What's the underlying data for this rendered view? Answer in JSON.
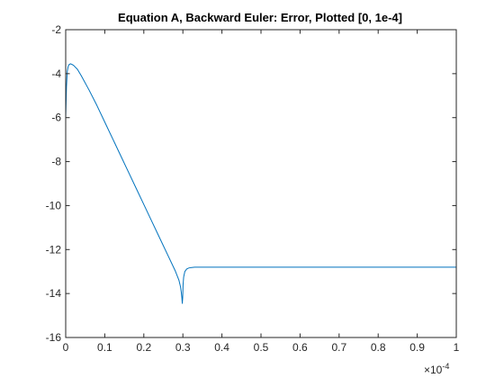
{
  "chart_data": {
    "type": "line",
    "title": "Equation A, Backward Euler: Error, Plotted [0, 1e-4]",
    "xlabel": "",
    "ylabel": "",
    "xlim": [
      0,
      1
    ],
    "ylim": [
      -16,
      -2
    ],
    "x_exponent_label": "×10",
    "x_exponent_power": "-4",
    "x_ticks": [
      0,
      0.1,
      0.2,
      0.3,
      0.4,
      0.5,
      0.6,
      0.7,
      0.8,
      0.9,
      1
    ],
    "x_tick_labels": [
      "0",
      "0.1",
      "0.2",
      "0.3",
      "0.4",
      "0.5",
      "0.6",
      "0.7",
      "0.8",
      "0.9",
      "1"
    ],
    "y_ticks": [
      -16,
      -14,
      -12,
      -10,
      -8,
      -6,
      -4,
      -2
    ],
    "y_tick_labels": [
      "-16",
      "-14",
      "-12",
      "-10",
      "-8",
      "-6",
      "-4",
      "-2"
    ],
    "grid": false,
    "legend": "none",
    "line_color": "#0072BD",
    "series": [
      {
        "x": [
          0,
          0.002,
          0.004,
          0.006,
          0.008,
          0.012,
          0.016,
          0.02,
          0.03,
          0.04,
          0.06,
          0.08,
          0.1,
          0.12,
          0.14,
          0.16,
          0.18,
          0.2,
          0.22,
          0.24,
          0.26,
          0.28,
          0.29,
          0.294,
          0.296,
          0.2975,
          0.2985,
          0.2995,
          0.3005,
          0.302,
          0.305,
          0.31,
          0.315,
          0.32,
          0.33,
          0.35,
          0.4,
          0.5,
          0.6,
          0.7,
          0.8,
          0.9,
          1
        ],
        "y": [
          -6.0,
          -4.6,
          -3.9,
          -3.7,
          -3.6,
          -3.55,
          -3.58,
          -3.62,
          -3.8,
          -4.1,
          -4.75,
          -5.45,
          -6.2,
          -6.95,
          -7.7,
          -8.45,
          -9.2,
          -9.95,
          -10.7,
          -11.45,
          -12.2,
          -12.95,
          -13.4,
          -13.7,
          -13.95,
          -14.2,
          -14.45,
          -14.2,
          -13.6,
          -13.25,
          -13.0,
          -12.88,
          -12.84,
          -12.82,
          -12.8,
          -12.8,
          -12.8,
          -12.8,
          -12.8,
          -12.8,
          -12.8,
          -12.8,
          -12.8
        ]
      }
    ]
  }
}
